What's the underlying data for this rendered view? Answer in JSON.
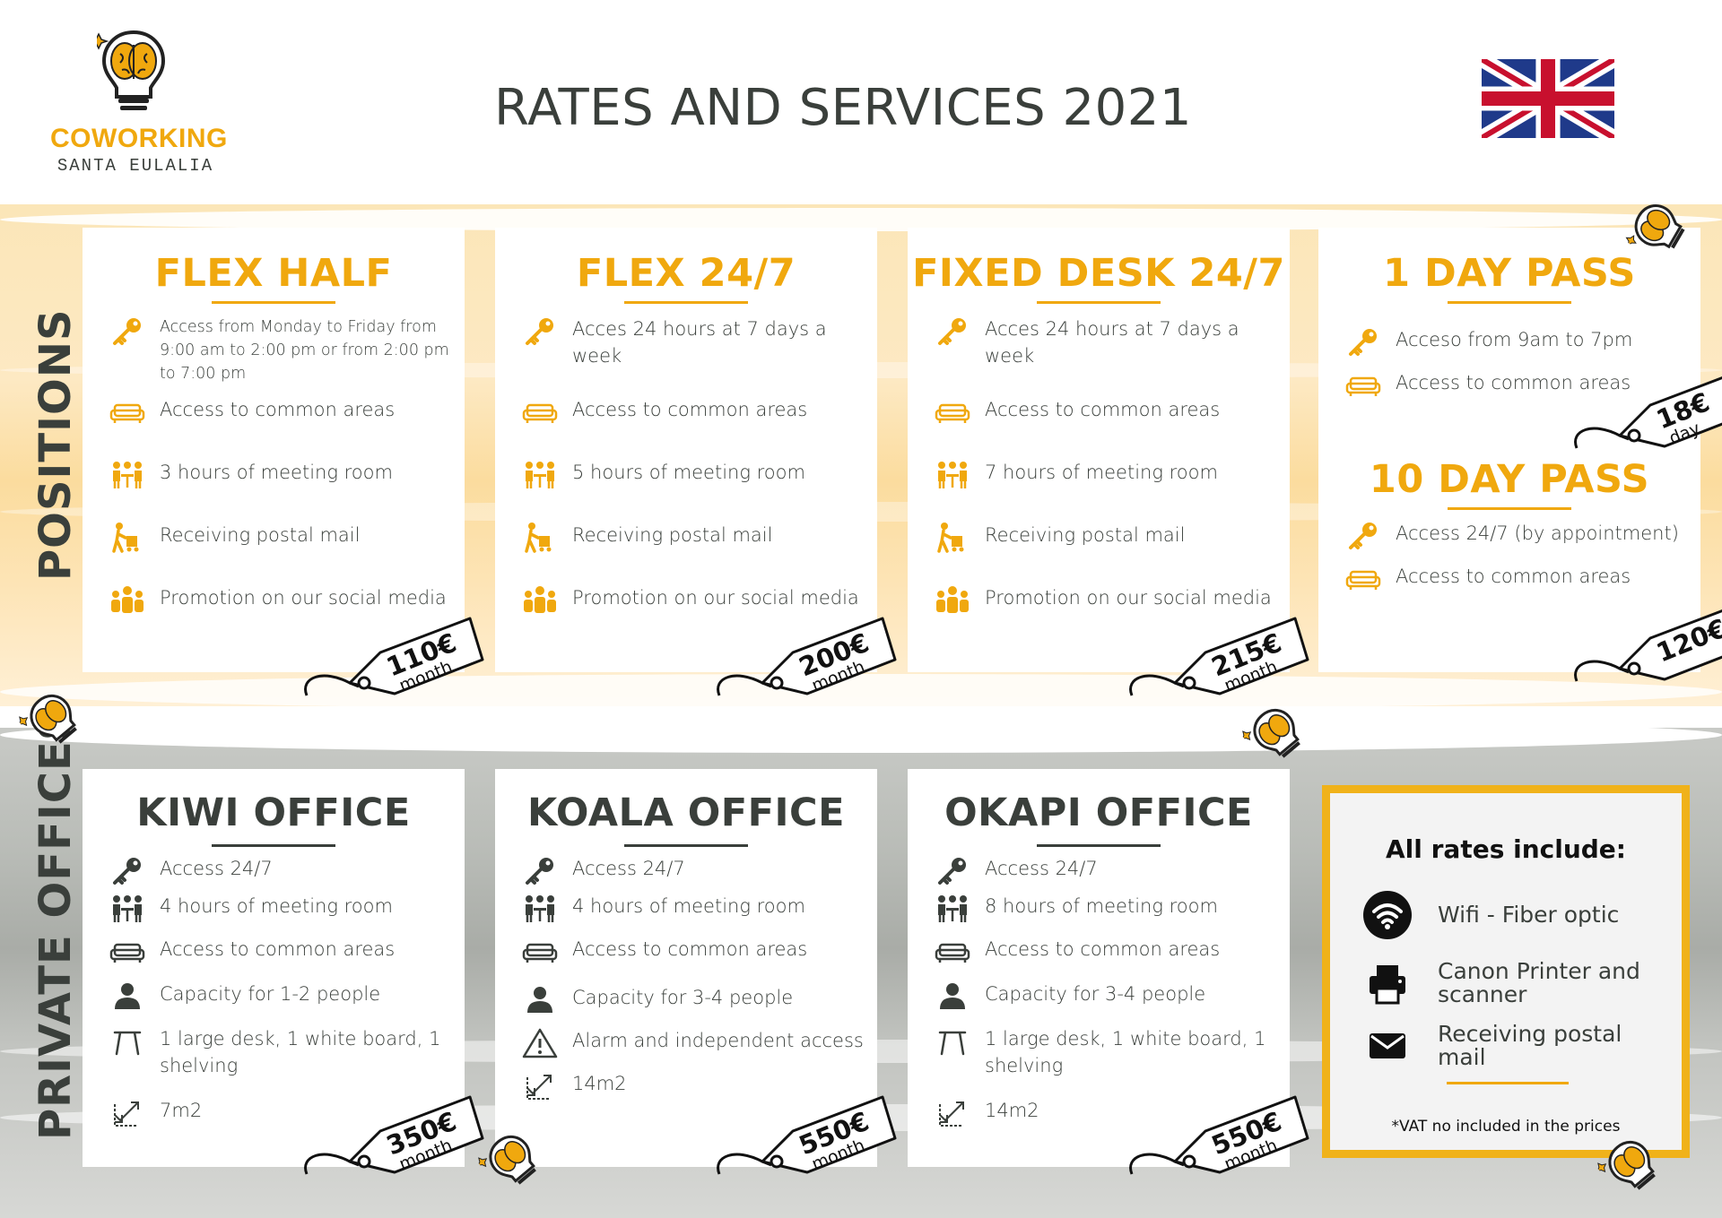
{
  "header": {
    "brand": "COWORKING",
    "brand_sub": "SANTA EULALIA",
    "title": "RATES AND SERVICES 2021",
    "flag_icon": "uk-flag-icon"
  },
  "colors": {
    "accent": "#f0a80e",
    "dark": "#3a3f3b",
    "box_border": "#f0b21a"
  },
  "sections": {
    "positions": "POSITIONS",
    "private_offices": "PRIVATE OFFICES"
  },
  "positions": [
    {
      "title": "FLEX HALF",
      "features": [
        {
          "icon": "key-icon",
          "text": "Access from Monday to Friday from 9:00 am to 2:00 pm or from 2:00 pm to 7:00 pm"
        },
        {
          "icon": "sofa-icon",
          "text": "Access to common areas"
        },
        {
          "icon": "meeting-icon",
          "text": "3 hours of meeting room"
        },
        {
          "icon": "mail-trolley-icon",
          "text": "Receiving postal mail"
        },
        {
          "icon": "people-icon",
          "text": "Promotion on our social media"
        }
      ],
      "price": "110€",
      "period": "month"
    },
    {
      "title": "FLEX 24/7",
      "features": [
        {
          "icon": "key-icon",
          "text": "Acces 24 hours at 7 days a week"
        },
        {
          "icon": "sofa-icon",
          "text": "Access to common areas"
        },
        {
          "icon": "meeting-icon",
          "text": "5 hours of meeting room"
        },
        {
          "icon": "mail-trolley-icon",
          "text": "Receiving postal mail"
        },
        {
          "icon": "people-icon",
          "text": "Promotion on our social media"
        }
      ],
      "price": "200€",
      "period": "month"
    },
    {
      "title": "FIXED DESK 24/7",
      "features": [
        {
          "icon": "key-icon",
          "text": "Acces 24 hours at 7 days a week"
        },
        {
          "icon": "sofa-icon",
          "text": "Access to common areas"
        },
        {
          "icon": "meeting-icon",
          "text": "7 hours of meeting room"
        },
        {
          "icon": "mail-trolley-icon",
          "text": "Receiving postal mail"
        },
        {
          "icon": "people-icon",
          "text": "Promotion on our social media"
        }
      ],
      "price": "215€",
      "period": "month"
    },
    {
      "title": "1 DAY PASS",
      "features": [
        {
          "icon": "key-icon",
          "text": "Acceso from 9am to 7pm"
        },
        {
          "icon": "sofa-icon",
          "text": "Access to common areas"
        }
      ],
      "price": "18€",
      "period": "day",
      "second_title": "10 DAY PASS",
      "second_features": [
        {
          "icon": "key-icon",
          "text": "Access 24/7 (by appointment)"
        },
        {
          "icon": "sofa-icon",
          "text": "Access to common areas"
        }
      ],
      "second_price": "120€"
    }
  ],
  "offices": [
    {
      "title": "KIWI OFFICE",
      "features": [
        {
          "icon": "key-icon",
          "text": "Access 24/7"
        },
        {
          "icon": "meeting-icon",
          "text": "4 hours of meeting room"
        },
        {
          "icon": "sofa-icon",
          "text": "Access to common areas"
        },
        {
          "icon": "person-icon",
          "text": "Capacity for 1-2 people"
        },
        {
          "icon": "desk-icon",
          "text": "1 large desk, 1 white board, 1 shelving"
        },
        {
          "icon": "area-icon",
          "text": "7m2"
        }
      ],
      "price": "350€",
      "period": "month"
    },
    {
      "title": "KOALA OFFICE",
      "features": [
        {
          "icon": "key-icon",
          "text": "Access 24/7"
        },
        {
          "icon": "meeting-icon",
          "text": "4 hours of meeting room"
        },
        {
          "icon": "sofa-icon",
          "text": "Access to common areas"
        },
        {
          "icon": "person-icon",
          "text": "Capacity for 3-4 people"
        },
        {
          "icon": "alarm-icon",
          "text": "Alarm and independent access"
        },
        {
          "icon": "area-icon",
          "text": "14m2"
        }
      ],
      "price": "550€",
      "period": "month"
    },
    {
      "title": "OKAPI OFFICE",
      "features": [
        {
          "icon": "key-icon",
          "text": "Access 24/7"
        },
        {
          "icon": "meeting-icon",
          "text": "8 hours of meeting room"
        },
        {
          "icon": "sofa-icon",
          "text": "Access to common areas"
        },
        {
          "icon": "person-icon",
          "text": "Capacity for 3-4 people"
        },
        {
          "icon": "desk-icon",
          "text": "1 large desk, 1 white board, 1 shelving"
        },
        {
          "icon": "area-icon",
          "text": "14m2"
        }
      ],
      "price": "550€",
      "period": "month"
    }
  ],
  "includes": {
    "title": "All rates include:",
    "items": [
      {
        "icon": "wifi-icon",
        "text": "Wifi - Fiber optic"
      },
      {
        "icon": "printer-icon",
        "text": "Canon Printer and scanner"
      },
      {
        "icon": "envelope-icon",
        "text": "Receiving postal mail"
      }
    ],
    "note": "*VAT no included in the  prices"
  }
}
